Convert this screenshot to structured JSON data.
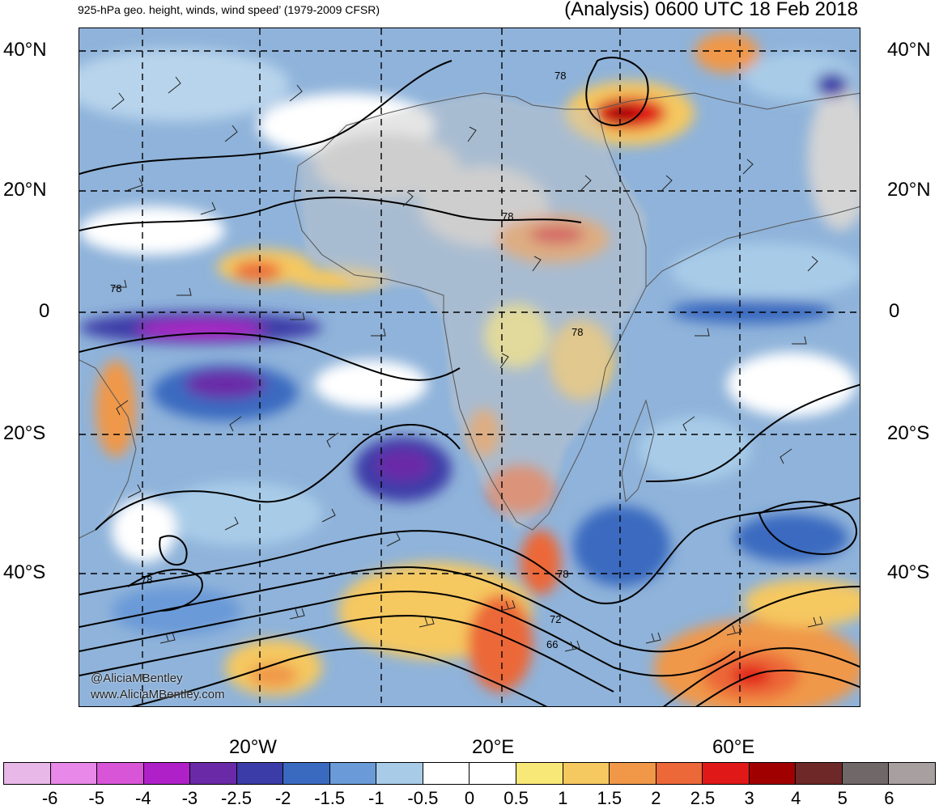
{
  "header": {
    "left_title": "925-hPa geo. height, winds, wind speed’ (1979-2009 CFSR)",
    "right_title": "(Analysis) 0600 UTC 18 Feb 2018"
  },
  "axes": {
    "lat_labels_left": [
      "40°N",
      "20°N",
      "0",
      "20°S",
      "40°S"
    ],
    "lat_labels_right": [
      "40°N",
      "20°N",
      "0",
      "20°S",
      "40°S"
    ],
    "lon_labels": [
      "20°W",
      "20°E",
      "60°E"
    ]
  },
  "contour_labels": [
    "78",
    "78",
    "78",
    "78",
    "78",
    "78",
    "72",
    "66"
  ],
  "credits": {
    "handle": "@AliciaMBentley",
    "site": "www.AliciaMBentley.com"
  },
  "colorbar": {
    "colors": [
      "#e8b8e8",
      "#e888e8",
      "#d855d8",
      "#b020c8",
      "#6a2aa8",
      "#3c3ca8",
      "#3a6ac0",
      "#6a9ad8",
      "#a8cce8",
      "#ffffff",
      "#ffffff",
      "#f8e878",
      "#f5c860",
      "#f09848",
      "#ec6838",
      "#e01818",
      "#a00000",
      "#6e2828",
      "#706868",
      "#a8a0a0"
    ],
    "tick_labels": [
      "-6",
      "-5",
      "-4",
      "-3",
      "-2.5",
      "-2",
      "-1.5",
      "-1",
      "-0.5",
      "0",
      "0.5",
      "1",
      "1.5",
      "2",
      "2.5",
      "3",
      "4",
      "5",
      "6"
    ]
  }
}
